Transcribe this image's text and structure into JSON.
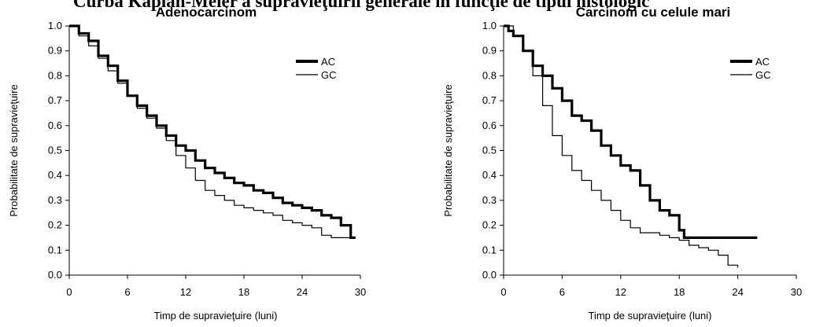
{
  "figure": {
    "title": "Curba Kaplan-Meier a supravieţuirii generale în funcţie de tipul histologic"
  },
  "chart_data": [
    {
      "type": "line",
      "title": "Adenocarcinom",
      "xlabel": "Timp de supravieţuire (luni)",
      "ylabel": "Probabilitate de supravieţuire",
      "xlim": [
        0,
        30
      ],
      "ylim": [
        0,
        1.0
      ],
      "x_ticks": [
        "0",
        "6",
        "12",
        "18",
        "24",
        "30"
      ],
      "y_ticks": [
        "0.0",
        "0.1",
        "0.2",
        "0.3",
        "0.4",
        "0.5",
        "0.6",
        "0.7",
        "0.8",
        "0.9",
        "1.0"
      ],
      "legend_position": "right",
      "grid": false,
      "series": [
        {
          "name": "AC",
          "color": "#000000",
          "style": "thick",
          "x": [
            0,
            1,
            2,
            3,
            4,
            5,
            6,
            7,
            8,
            9,
            10,
            11,
            12,
            13,
            14,
            15,
            16,
            17,
            18,
            19,
            20,
            21,
            22,
            23,
            24,
            25,
            26,
            27,
            28,
            29,
            29.5
          ],
          "y": [
            1.0,
            0.97,
            0.94,
            0.88,
            0.84,
            0.78,
            0.72,
            0.68,
            0.64,
            0.6,
            0.56,
            0.52,
            0.5,
            0.46,
            0.43,
            0.41,
            0.39,
            0.37,
            0.36,
            0.34,
            0.33,
            0.31,
            0.29,
            0.28,
            0.27,
            0.26,
            0.24,
            0.23,
            0.2,
            0.15,
            0.15
          ]
        },
        {
          "name": "GC",
          "color": "#000000",
          "style": "thin",
          "x": [
            0,
            1,
            2,
            3,
            4,
            5,
            6,
            7,
            8,
            9,
            10,
            11,
            12,
            13,
            14,
            15,
            16,
            17,
            18,
            19,
            20,
            21,
            22,
            23,
            24,
            25,
            26,
            27,
            28,
            29,
            29.5
          ],
          "y": [
            1.0,
            0.96,
            0.92,
            0.87,
            0.82,
            0.77,
            0.72,
            0.67,
            0.63,
            0.59,
            0.54,
            0.48,
            0.43,
            0.38,
            0.34,
            0.32,
            0.3,
            0.28,
            0.27,
            0.26,
            0.25,
            0.24,
            0.22,
            0.21,
            0.2,
            0.19,
            0.16,
            0.15,
            0.15,
            0.15,
            0.15
          ]
        }
      ]
    },
    {
      "type": "line",
      "title": "Carcinom cu celule mari",
      "xlabel": "Timp de supravieţuire (luni)",
      "ylabel": "Probabilitate de supravieţuire",
      "xlim": [
        0,
        30
      ],
      "ylim": [
        0,
        1.0
      ],
      "x_ticks": [
        "0",
        "6",
        "12",
        "18",
        "24",
        "30"
      ],
      "y_ticks": [
        "0.0",
        "0.1",
        "0.2",
        "0.3",
        "0.4",
        "0.5",
        "0.6",
        "0.7",
        "0.8",
        "0.9",
        "1.0"
      ],
      "legend_position": "right",
      "grid": false,
      "series": [
        {
          "name": "AC",
          "color": "#000000",
          "style": "thick",
          "x": [
            0,
            0.5,
            1,
            2,
            3,
            4,
            5,
            6,
            7,
            8,
            9,
            10,
            11,
            12,
            13,
            14,
            15,
            16,
            17,
            18,
            18.5,
            19,
            20,
            22,
            24,
            26
          ],
          "y": [
            1.0,
            0.98,
            0.96,
            0.9,
            0.84,
            0.8,
            0.75,
            0.7,
            0.64,
            0.62,
            0.58,
            0.52,
            0.48,
            0.44,
            0.42,
            0.36,
            0.3,
            0.26,
            0.24,
            0.18,
            0.15,
            0.15,
            0.15,
            0.15,
            0.15,
            0.15
          ]
        },
        {
          "name": "GC",
          "color": "#000000",
          "style": "thin",
          "x": [
            0,
            1,
            2,
            3,
            4,
            5,
            6,
            7,
            8,
            9,
            10,
            11,
            12,
            13,
            14,
            15,
            16,
            17,
            18,
            19,
            20,
            21,
            22,
            23,
            24
          ],
          "y": [
            1.0,
            0.96,
            0.9,
            0.8,
            0.68,
            0.56,
            0.48,
            0.42,
            0.38,
            0.34,
            0.3,
            0.26,
            0.22,
            0.19,
            0.17,
            0.17,
            0.16,
            0.15,
            0.14,
            0.12,
            0.11,
            0.1,
            0.08,
            0.04,
            0.03
          ]
        }
      ]
    }
  ]
}
